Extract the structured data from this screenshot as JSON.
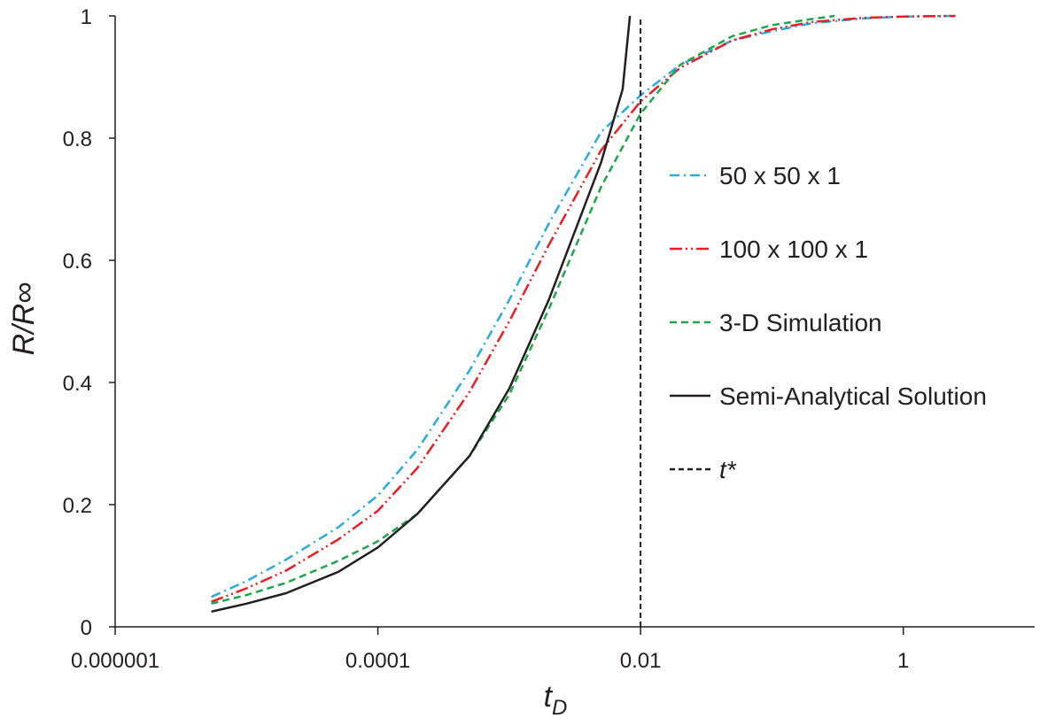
{
  "chart_data": {
    "type": "line",
    "x_scale": "log",
    "xlim": [
      1e-06,
      10
    ],
    "ylim": [
      0,
      1
    ],
    "x_ticks": [
      {
        "value": 1e-06,
        "label": "0.000001"
      },
      {
        "value": 0.0001,
        "label": "0.0001"
      },
      {
        "value": 0.01,
        "label": "0.01"
      },
      {
        "value": 1,
        "label": "1"
      }
    ],
    "y_ticks": [
      {
        "value": 0,
        "label": "0"
      },
      {
        "value": 0.2,
        "label": "0.2"
      },
      {
        "value": 0.4,
        "label": "0.4"
      },
      {
        "value": 0.6,
        "label": "0.6"
      },
      {
        "value": 0.8,
        "label": "0.8"
      },
      {
        "value": 1,
        "label": "1"
      }
    ],
    "xlabel": {
      "main": "t",
      "sub": "D"
    },
    "ylabel": "R/R∞",
    "grid": false,
    "legend_position": "right",
    "series": [
      {
        "name": "50 x 50 x 1",
        "color": "#29abe2",
        "style": "dash-dot",
        "points": [
          [
            5.4e-06,
            0.049
          ],
          [
            1e-05,
            0.075
          ],
          [
            2e-05,
            0.11
          ],
          [
            5e-05,
            0.163
          ],
          [
            0.0001,
            0.215
          ],
          [
            0.0002,
            0.29
          ],
          [
            0.0005,
            0.42
          ],
          [
            0.001,
            0.535
          ],
          [
            0.002,
            0.66
          ],
          [
            0.005,
            0.81
          ],
          [
            0.01,
            0.87
          ],
          [
            0.02,
            0.92
          ],
          [
            0.05,
            0.96
          ],
          [
            0.1,
            0.975
          ],
          [
            0.2,
            0.988
          ],
          [
            0.5,
            0.996
          ],
          [
            1,
            0.999
          ],
          [
            2.5,
            1.0
          ]
        ]
      },
      {
        "name": "100 x 100 x 1",
        "color": "#ed1c24",
        "style": "dash-dot-dot",
        "points": [
          [
            5.4e-06,
            0.041
          ],
          [
            1e-05,
            0.063
          ],
          [
            2e-05,
            0.092
          ],
          [
            5e-05,
            0.143
          ],
          [
            0.0001,
            0.19
          ],
          [
            0.0002,
            0.26
          ],
          [
            0.0005,
            0.385
          ],
          [
            0.001,
            0.5
          ],
          [
            0.002,
            0.625
          ],
          [
            0.005,
            0.78
          ],
          [
            0.01,
            0.86
          ],
          [
            0.02,
            0.915
          ],
          [
            0.05,
            0.96
          ],
          [
            0.1,
            0.978
          ],
          [
            0.2,
            0.99
          ],
          [
            0.5,
            0.997
          ],
          [
            1,
            0.999
          ],
          [
            2.5,
            1.0
          ]
        ]
      },
      {
        "name": "3-D Simulation",
        "color": "#1fa64a",
        "style": "dashed",
        "points": [
          [
            5.4e-06,
            0.038
          ],
          [
            1e-05,
            0.052
          ],
          [
            2e-05,
            0.072
          ],
          [
            5e-05,
            0.108
          ],
          [
            0.0001,
            0.14
          ],
          [
            0.0002,
            0.185
          ],
          [
            0.0005,
            0.28
          ],
          [
            0.001,
            0.38
          ],
          [
            0.002,
            0.52
          ],
          [
            0.005,
            0.72
          ],
          [
            0.01,
            0.84
          ],
          [
            0.02,
            0.92
          ],
          [
            0.05,
            0.967
          ],
          [
            0.1,
            0.985
          ],
          [
            0.2,
            0.995
          ],
          [
            0.3,
            1.0
          ]
        ]
      },
      {
        "name": "Semi-Analytical Solution",
        "color": "#231f20",
        "style": "solid",
        "points": [
          [
            5.4e-06,
            0.025
          ],
          [
            1e-05,
            0.038
          ],
          [
            2e-05,
            0.055
          ],
          [
            5e-05,
            0.09
          ],
          [
            0.0001,
            0.13
          ],
          [
            0.0002,
            0.185
          ],
          [
            0.0005,
            0.28
          ],
          [
            0.001,
            0.39
          ],
          [
            0.002,
            0.535
          ],
          [
            0.005,
            0.76
          ],
          [
            0.0073,
            0.88
          ],
          [
            0.0083,
            1.0
          ]
        ]
      },
      {
        "name": "t*",
        "color": "#231f20",
        "style": "short-dash",
        "points": [
          [
            0.01,
            0
          ],
          [
            0.01,
            1
          ]
        ]
      }
    ]
  }
}
